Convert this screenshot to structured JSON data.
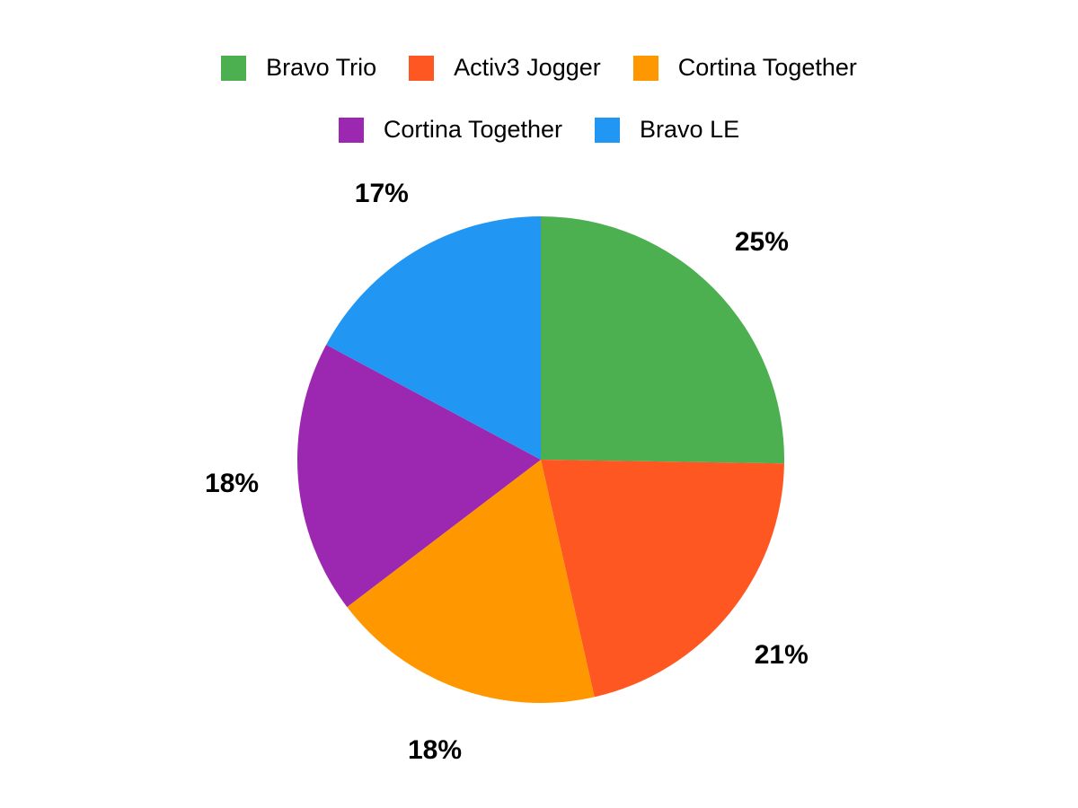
{
  "chart_data": {
    "type": "pie",
    "title": "",
    "legend_position": "top",
    "direction": "clockwise",
    "start_angle_deg": 0,
    "background_color": "#ffffff",
    "label_text_color": "#000000",
    "slices": [
      {
        "label": "Bravo Trio",
        "value": 25,
        "pct_label": "25%",
        "color": "#4caf50"
      },
      {
        "label": "Activ3 Jogger",
        "value": 21,
        "pct_label": "21%",
        "color": "#ff5722"
      },
      {
        "label": "Cortina Together",
        "value": 18,
        "pct_label": "18%",
        "color": "#ff9800"
      },
      {
        "label": "Cortina Together",
        "value": 18,
        "pct_label": "18%",
        "color": "#9c27b0"
      },
      {
        "label": "Bravo LE",
        "value": 17,
        "pct_label": "17%",
        "color": "#2196f3"
      }
    ]
  }
}
